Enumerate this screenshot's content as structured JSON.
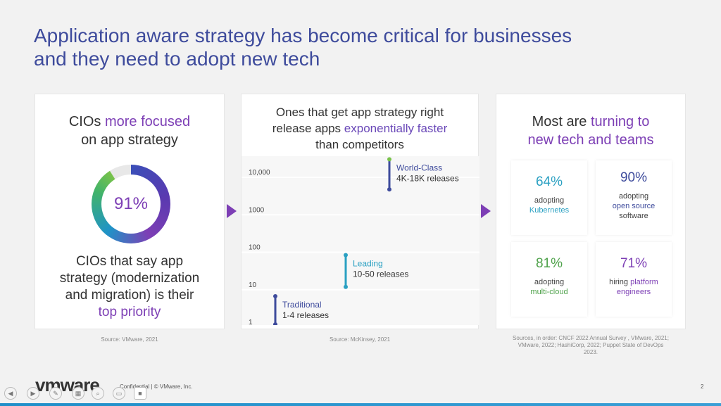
{
  "title": {
    "line1": "Application aware strategy has become critical for businesses",
    "line2": "and they need to adopt new tech"
  },
  "card1": {
    "head_a": "CIOs ",
    "head_b": "more focused",
    "head_c": "on app strategy",
    "donut_value": "91%",
    "body_1": "CIOs that say app",
    "body_2": "strategy (modernization",
    "body_3": "and migration) is their",
    "body_4": "top priority",
    "source": "Source: VMware, 2021"
  },
  "card2": {
    "head_1": "Ones that get app strategy right",
    "head_2a": "release apps ",
    "head_2b": "exponentially faster",
    "head_3": "than competitors",
    "source": "Source: McKinsey, 2021"
  },
  "chart_data": {
    "type": "scatter",
    "scale": "log",
    "ytick_labels": [
      "10,000",
      "1000",
      "100",
      "10",
      "1"
    ],
    "ranges": [
      {
        "name": "World-Class",
        "label": "4K-18K releases",
        "low": 4000,
        "high": 18000,
        "color": "#3e4b9c"
      },
      {
        "name": "Leading",
        "label": "10-50 releases",
        "low": 10,
        "high": 50,
        "color": "#2aa0c2"
      },
      {
        "name": "Traditional",
        "label": "1-4 releases",
        "low": 1,
        "high": 4,
        "color": "#3e4b9c"
      }
    ]
  },
  "card3": {
    "head_a": "Most are ",
    "head_b": "turning to",
    "head_c": "new tech and teams",
    "stats": [
      {
        "pct": "64%",
        "line1": "adopting",
        "line2": "Kubernetes",
        "line3": "",
        "color": "#2aa0c2"
      },
      {
        "pct": "90%",
        "line1": "adopting",
        "line2": "open source",
        "line3": "software",
        "color": "#3e4b9c"
      },
      {
        "pct": "81%",
        "line1": "adopting",
        "line2": "multi-cloud",
        "line3": "",
        "color": "#4fa24b"
      },
      {
        "pct": "71%",
        "line1": "hiring ",
        "line2": "platform",
        "line3": "engineers",
        "color": "#7d3fb5"
      }
    ],
    "source_1": "Sources, in order: CNCF 2022 Annual Survey , VMware, 2021;",
    "source_2": "VMware, 2022; HashiCorp, 2022; Puppet State of DevOps",
    "source_3": "2023."
  },
  "footer": {
    "logo": "vmware",
    "confidential": "Confidential  |  © VMware, Inc.",
    "page": "2"
  }
}
